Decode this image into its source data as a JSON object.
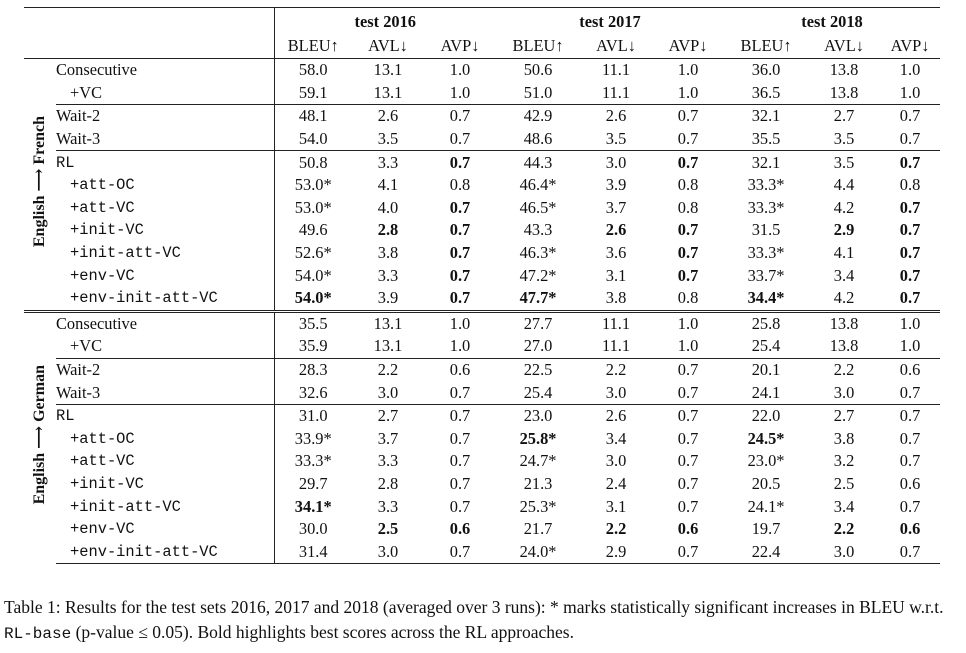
{
  "headers": {
    "groups": [
      "test 2016",
      "test 2017",
      "test 2018"
    ],
    "metrics": [
      "BLEU↑",
      "AVL↓",
      "AVP↓"
    ]
  },
  "sections": [
    {
      "label": "English ⟶ French",
      "blocks": [
        [
          {
            "name": "Consecutive",
            "mono": false,
            "indent": false,
            "cells": [
              [
                "58.0",
                0
              ],
              [
                "13.1",
                0
              ],
              [
                "1.0",
                0
              ],
              [
                "50.6",
                0
              ],
              [
                "11.1",
                0
              ],
              [
                "1.0",
                0
              ],
              [
                "36.0",
                0
              ],
              [
                "13.8",
                0
              ],
              [
                "1.0",
                0
              ]
            ]
          },
          {
            "name": "+VC",
            "mono": false,
            "indent": true,
            "cells": [
              [
                "59.1",
                0
              ],
              [
                "13.1",
                0
              ],
              [
                "1.0",
                0
              ],
              [
                "51.0",
                0
              ],
              [
                "11.1",
                0
              ],
              [
                "1.0",
                0
              ],
              [
                "36.5",
                0
              ],
              [
                "13.8",
                0
              ],
              [
                "1.0",
                0
              ]
            ]
          }
        ],
        [
          {
            "name": "Wait-2",
            "mono": false,
            "indent": false,
            "cells": [
              [
                "48.1",
                0
              ],
              [
                "2.6",
                0
              ],
              [
                "0.7",
                0
              ],
              [
                "42.9",
                0
              ],
              [
                "2.6",
                0
              ],
              [
                "0.7",
                0
              ],
              [
                "32.1",
                0
              ],
              [
                "2.7",
                0
              ],
              [
                "0.7",
                0
              ]
            ]
          },
          {
            "name": "Wait-3",
            "mono": false,
            "indent": false,
            "cells": [
              [
                "54.0",
                0
              ],
              [
                "3.5",
                0
              ],
              [
                "0.7",
                0
              ],
              [
                "48.6",
                0
              ],
              [
                "3.5",
                0
              ],
              [
                "0.7",
                0
              ],
              [
                "35.5",
                0
              ],
              [
                "3.5",
                0
              ],
              [
                "0.7",
                0
              ]
            ]
          }
        ],
        [
          {
            "name": "RL",
            "mono": true,
            "indent": false,
            "cells": [
              [
                "50.8",
                0
              ],
              [
                "3.3",
                0
              ],
              [
                "0.7",
                1
              ],
              [
                "44.3",
                0
              ],
              [
                "3.0",
                0
              ],
              [
                "0.7",
                1
              ],
              [
                "32.1",
                0
              ],
              [
                "3.5",
                0
              ],
              [
                "0.7",
                1
              ]
            ]
          },
          {
            "name": "+att-OC",
            "mono": true,
            "indent": true,
            "cells": [
              [
                "53.0*",
                0
              ],
              [
                "4.1",
                0
              ],
              [
                "0.8",
                0
              ],
              [
                "46.4*",
                0
              ],
              [
                "3.9",
                0
              ],
              [
                "0.8",
                0
              ],
              [
                "33.3*",
                0
              ],
              [
                "4.4",
                0
              ],
              [
                "0.8",
                0
              ]
            ]
          },
          {
            "name": "+att-VC",
            "mono": true,
            "indent": true,
            "cells": [
              [
                "53.0*",
                0
              ],
              [
                "4.0",
                0
              ],
              [
                "0.7",
                1
              ],
              [
                "46.5*",
                0
              ],
              [
                "3.7",
                0
              ],
              [
                "0.8",
                0
              ],
              [
                "33.3*",
                0
              ],
              [
                "4.2",
                0
              ],
              [
                "0.7",
                1
              ]
            ]
          },
          {
            "name": "+init-VC",
            "mono": true,
            "indent": true,
            "cells": [
              [
                "49.6",
                0
              ],
              [
                "2.8",
                1
              ],
              [
                "0.7",
                1
              ],
              [
                "43.3",
                0
              ],
              [
                "2.6",
                1
              ],
              [
                "0.7",
                1
              ],
              [
                "31.5",
                0
              ],
              [
                "2.9",
                1
              ],
              [
                "0.7",
                1
              ]
            ]
          },
          {
            "name": "+init-att-VC",
            "mono": true,
            "indent": true,
            "cells": [
              [
                "52.6*",
                0
              ],
              [
                "3.8",
                0
              ],
              [
                "0.7",
                1
              ],
              [
                "46.3*",
                0
              ],
              [
                "3.6",
                0
              ],
              [
                "0.7",
                1
              ],
              [
                "33.3*",
                0
              ],
              [
                "4.1",
                0
              ],
              [
                "0.7",
                1
              ]
            ]
          },
          {
            "name": "+env-VC",
            "mono": true,
            "indent": true,
            "cells": [
              [
                "54.0*",
                0
              ],
              [
                "3.3",
                0
              ],
              [
                "0.7",
                1
              ],
              [
                "47.2*",
                0
              ],
              [
                "3.1",
                0
              ],
              [
                "0.7",
                1
              ],
              [
                "33.7*",
                0
              ],
              [
                "3.4",
                0
              ],
              [
                "0.7",
                1
              ]
            ]
          },
          {
            "name": "+env-init-att-VC",
            "mono": true,
            "indent": true,
            "cells": [
              [
                "54.0*",
                1
              ],
              [
                "3.9",
                0
              ],
              [
                "0.7",
                1
              ],
              [
                "47.7*",
                1
              ],
              [
                "3.8",
                0
              ],
              [
                "0.8",
                0
              ],
              [
                "34.4*",
                1
              ],
              [
                "4.2",
                0
              ],
              [
                "0.7",
                1
              ]
            ]
          }
        ]
      ]
    },
    {
      "label": "English ⟶ German",
      "blocks": [
        [
          {
            "name": "Consecutive",
            "mono": false,
            "indent": false,
            "cells": [
              [
                "35.5",
                0
              ],
              [
                "13.1",
                0
              ],
              [
                "1.0",
                0
              ],
              [
                "27.7",
                0
              ],
              [
                "11.1",
                0
              ],
              [
                "1.0",
                0
              ],
              [
                "25.8",
                0
              ],
              [
                "13.8",
                0
              ],
              [
                "1.0",
                0
              ]
            ]
          },
          {
            "name": "+VC",
            "mono": false,
            "indent": true,
            "cells": [
              [
                "35.9",
                0
              ],
              [
                "13.1",
                0
              ],
              [
                "1.0",
                0
              ],
              [
                "27.0",
                0
              ],
              [
                "11.1",
                0
              ],
              [
                "1.0",
                0
              ],
              [
                "25.4",
                0
              ],
              [
                "13.8",
                0
              ],
              [
                "1.0",
                0
              ]
            ]
          }
        ],
        [
          {
            "name": "Wait-2",
            "mono": false,
            "indent": false,
            "cells": [
              [
                "28.3",
                0
              ],
              [
                "2.2",
                0
              ],
              [
                "0.6",
                0
              ],
              [
                "22.5",
                0
              ],
              [
                "2.2",
                0
              ],
              [
                "0.7",
                0
              ],
              [
                "20.1",
                0
              ],
              [
                "2.2",
                0
              ],
              [
                "0.6",
                0
              ]
            ]
          },
          {
            "name": "Wait-3",
            "mono": false,
            "indent": false,
            "cells": [
              [
                "32.6",
                0
              ],
              [
                "3.0",
                0
              ],
              [
                "0.7",
                0
              ],
              [
                "25.4",
                0
              ],
              [
                "3.0",
                0
              ],
              [
                "0.7",
                0
              ],
              [
                "24.1",
                0
              ],
              [
                "3.0",
                0
              ],
              [
                "0.7",
                0
              ]
            ]
          }
        ],
        [
          {
            "name": "RL",
            "mono": true,
            "indent": false,
            "cells": [
              [
                "31.0",
                0
              ],
              [
                "2.7",
                0
              ],
              [
                "0.7",
                0
              ],
              [
                "23.0",
                0
              ],
              [
                "2.6",
                0
              ],
              [
                "0.7",
                0
              ],
              [
                "22.0",
                0
              ],
              [
                "2.7",
                0
              ],
              [
                "0.7",
                0
              ]
            ]
          },
          {
            "name": "+att-OC",
            "mono": true,
            "indent": true,
            "cells": [
              [
                "33.9*",
                0
              ],
              [
                "3.7",
                0
              ],
              [
                "0.7",
                0
              ],
              [
                "25.8*",
                1
              ],
              [
                "3.4",
                0
              ],
              [
                "0.7",
                0
              ],
              [
                "24.5*",
                1
              ],
              [
                "3.8",
                0
              ],
              [
                "0.7",
                0
              ]
            ]
          },
          {
            "name": "+att-VC",
            "mono": true,
            "indent": true,
            "cells": [
              [
                "33.3*",
                0
              ],
              [
                "3.3",
                0
              ],
              [
                "0.7",
                0
              ],
              [
                "24.7*",
                0
              ],
              [
                "3.0",
                0
              ],
              [
                "0.7",
                0
              ],
              [
                "23.0*",
                0
              ],
              [
                "3.2",
                0
              ],
              [
                "0.7",
                0
              ]
            ]
          },
          {
            "name": "+init-VC",
            "mono": true,
            "indent": true,
            "cells": [
              [
                "29.7",
                0
              ],
              [
                "2.8",
                0
              ],
              [
                "0.7",
                0
              ],
              [
                "21.3",
                0
              ],
              [
                "2.4",
                0
              ],
              [
                "0.7",
                0
              ],
              [
                "20.5",
                0
              ],
              [
                "2.5",
                0
              ],
              [
                "0.6",
                0
              ]
            ]
          },
          {
            "name": "+init-att-VC",
            "mono": true,
            "indent": true,
            "cells": [
              [
                "34.1*",
                1
              ],
              [
                "3.3",
                0
              ],
              [
                "0.7",
                0
              ],
              [
                "25.3*",
                0
              ],
              [
                "3.1",
                0
              ],
              [
                "0.7",
                0
              ],
              [
                "24.1*",
                0
              ],
              [
                "3.4",
                0
              ],
              [
                "0.7",
                0
              ]
            ]
          },
          {
            "name": "+env-VC",
            "mono": true,
            "indent": true,
            "cells": [
              [
                "30.0",
                0
              ],
              [
                "2.5",
                1
              ],
              [
                "0.6",
                1
              ],
              [
                "21.7",
                0
              ],
              [
                "2.2",
                1
              ],
              [
                "0.6",
                1
              ],
              [
                "19.7",
                0
              ],
              [
                "2.2",
                1
              ],
              [
                "0.6",
                1
              ]
            ]
          },
          {
            "name": "+env-init-att-VC",
            "mono": true,
            "indent": true,
            "cells": [
              [
                "31.4",
                0
              ],
              [
                "3.0",
                0
              ],
              [
                "0.7",
                0
              ],
              [
                "24.0*",
                0
              ],
              [
                "2.9",
                0
              ],
              [
                "0.7",
                0
              ],
              [
                "22.4",
                0
              ],
              [
                "3.0",
                0
              ],
              [
                "0.7",
                0
              ]
            ]
          }
        ]
      ]
    }
  ],
  "caption": {
    "lead": "Table 1:",
    "text1": " Results for the test sets 2016, 2017 and 2018 (averaged over 3 runs): * marks statistically significant increases in BLEU w.r.t. ",
    "code": "RL-base",
    "text2": " (p-value ≤ 0.05). Bold highlights best scores across the RL approaches."
  }
}
